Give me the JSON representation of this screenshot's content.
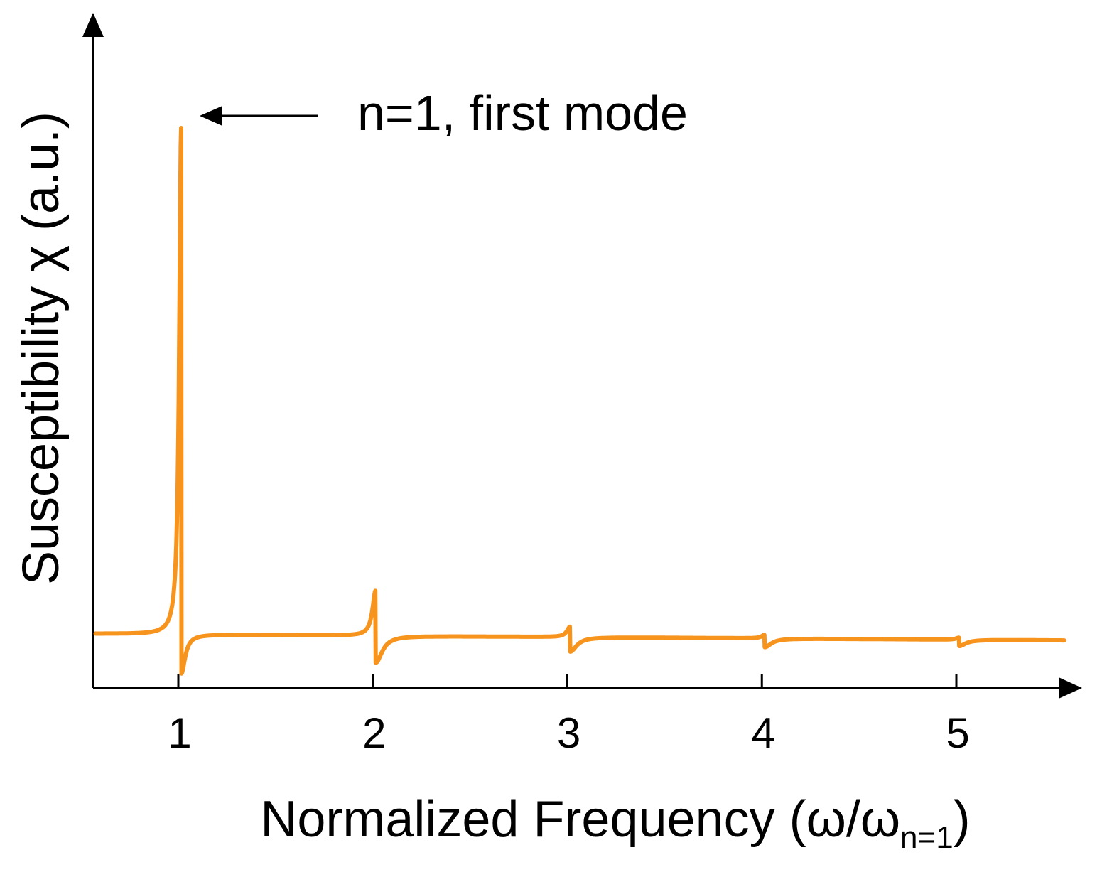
{
  "chart_data": {
    "type": "line",
    "title": "",
    "xlabel": {
      "main": "Normalized Frequency (ω/ω",
      "subscript": "n=1",
      "suffix": ")"
    },
    "ylabel": "Susceptibility χ (a.u.)",
    "xlim": [
      0.55,
      5.6
    ],
    "ylim": [
      0,
      1
    ],
    "x_ticks": [
      1,
      2,
      3,
      4,
      5
    ],
    "x_tick_labels": [
      "1",
      "2",
      "3",
      "4",
      "5"
    ],
    "y_ticks": [],
    "grid": false,
    "legend": "none",
    "series": [
      {
        "color": "#f7941d",
        "resonances": [
          {
            "mode": 1,
            "x": 1,
            "peak": 0.99,
            "dip": 0.01
          },
          {
            "mode": 2,
            "x": 2,
            "peak": 0.16,
            "dip": 0.03
          },
          {
            "mode": 3,
            "x": 3,
            "peak": 0.095,
            "dip": 0.05
          },
          {
            "mode": 4,
            "x": 4,
            "peak": 0.08,
            "dip": 0.058
          },
          {
            "mode": 5,
            "x": 5,
            "peak": 0.075,
            "dip": 0.06
          }
        ],
        "baseline": {
          "start": 0.082,
          "end": 0.07
        }
      }
    ],
    "annotations": [
      {
        "text": "n=1, first mode",
        "arrow_to_x": 1,
        "arrow_to_y": 0.99
      }
    ]
  }
}
